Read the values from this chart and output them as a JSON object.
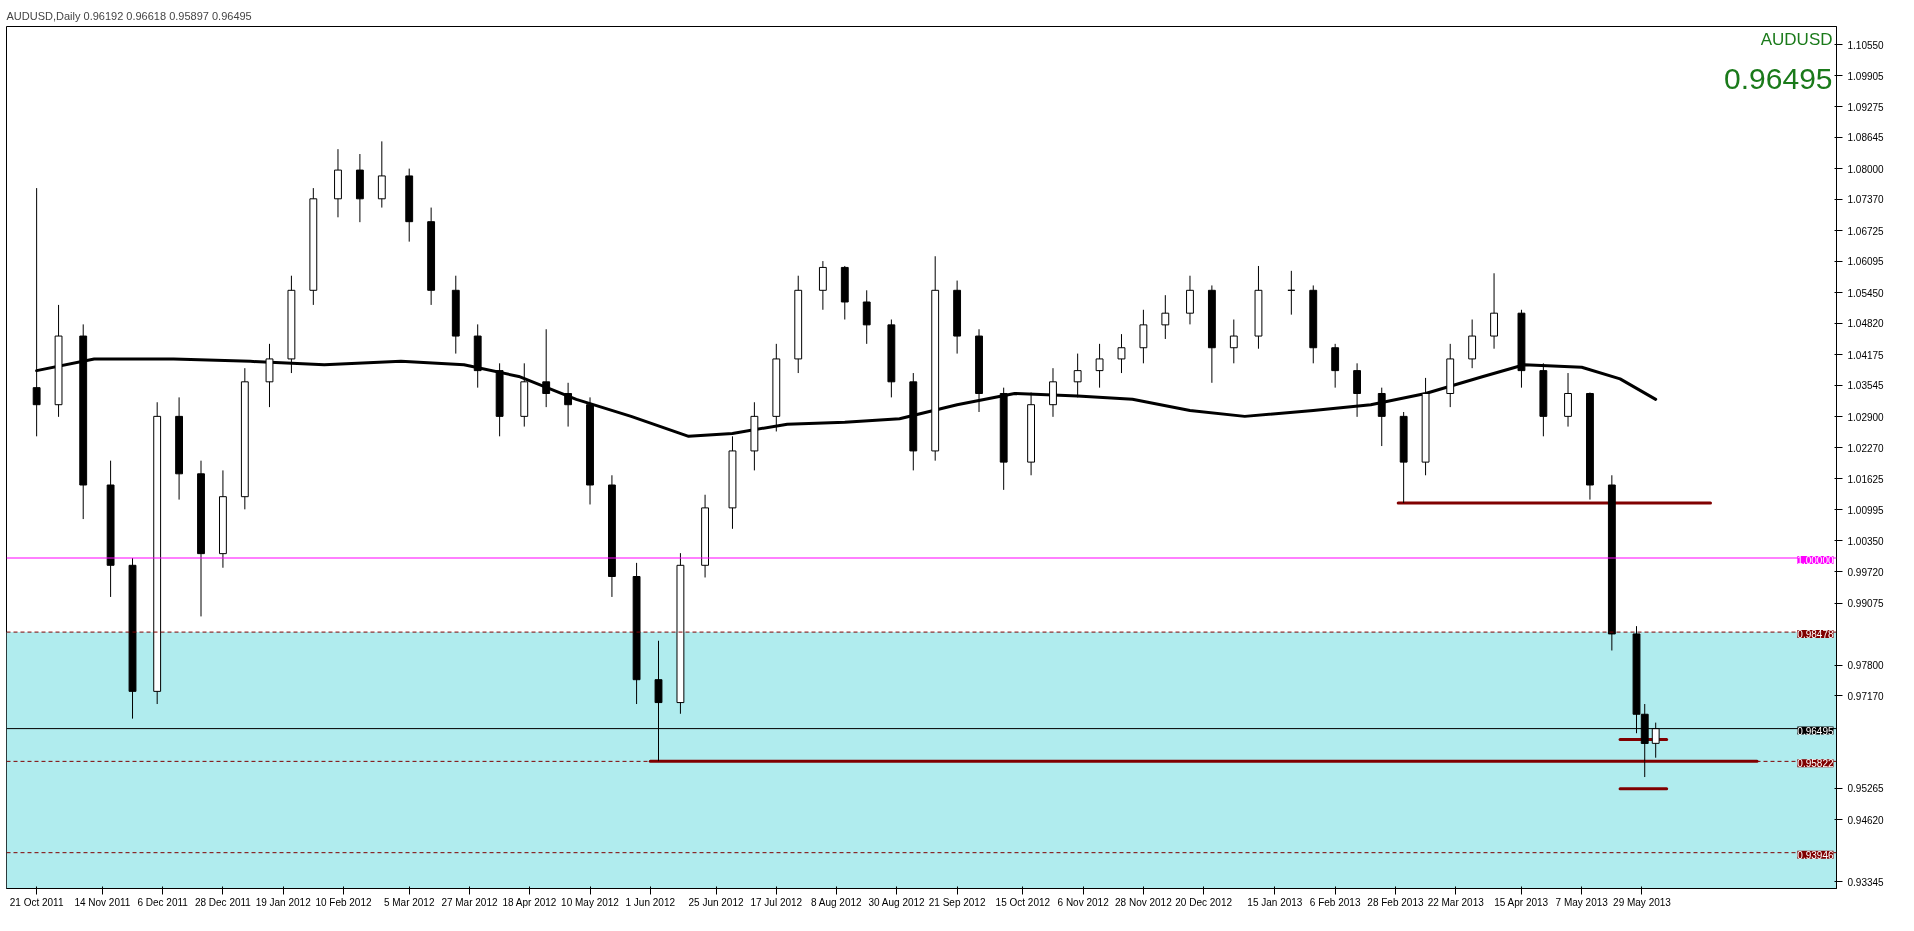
{
  "chart_data": {
    "type": "candlestick",
    "title": "AUDUSD,Daily  0.96192 0.96618 0.95897 0.96495",
    "color": "#000000",
    "x": [
      "2011-10-21",
      "2011-10-29",
      "2011-11-07",
      "2011-11-17",
      "2011-11-25",
      "2011-12-04",
      "2011-12-12",
      "2011-12-20",
      "2011-12-28",
      "2012-01-05",
      "2012-01-14",
      "2012-01-22",
      "2012-01-30",
      "2012-02-08",
      "2012-02-16",
      "2012-02-24",
      "2012-03-05",
      "2012-03-13",
      "2012-03-22",
      "2012-03-30",
      "2012-04-07",
      "2012-04-16",
      "2012-04-24",
      "2012-05-02",
      "2012-05-10",
      "2012-05-18",
      "2012-05-27",
      "2012-06-04",
      "2012-06-12",
      "2012-06-21",
      "2012-07-01",
      "2012-07-09",
      "2012-07-17",
      "2012-07-25",
      "2012-08-03",
      "2012-08-11",
      "2012-08-19",
      "2012-08-28",
      "2012-09-05",
      "2012-09-13",
      "2012-09-21",
      "2012-09-29",
      "2012-10-08",
      "2012-10-18",
      "2012-10-26",
      "2012-11-04",
      "2012-11-12",
      "2012-11-20",
      "2012-11-28",
      "2012-12-06",
      "2012-12-15",
      "2012-12-23",
      "2012-12-31",
      "2013-01-09",
      "2013-01-21",
      "2013-01-29",
      "2013-02-06",
      "2013-02-14",
      "2013-02-23",
      "2013-03-03",
      "2013-03-11",
      "2013-03-20",
      "2013-03-28",
      "2013-04-05",
      "2013-04-15",
      "2013-04-23",
      "2013-05-02",
      "2013-05-10",
      "2013-05-18",
      "2013-05-27",
      "2013-05-30",
      "2013-06-03"
    ],
    "ohlc": [
      [
        1.035,
        1.076,
        1.025,
        1.0315
      ],
      [
        1.0315,
        1.052,
        1.029,
        1.0456
      ],
      [
        1.0456,
        1.048,
        1.008,
        1.015
      ],
      [
        1.015,
        1.02,
        0.992,
        0.9985
      ],
      [
        0.9985,
        1.0,
        0.967,
        0.9726
      ],
      [
        0.9726,
        1.032,
        0.97,
        1.0291
      ],
      [
        1.0291,
        1.033,
        1.012,
        1.0173
      ],
      [
        1.0173,
        1.02,
        0.988,
        1.0009
      ],
      [
        1.0009,
        1.018,
        0.998,
        1.0126
      ],
      [
        1.0126,
        1.039,
        1.01,
        1.0362
      ],
      [
        1.0362,
        1.044,
        1.031,
        1.0409
      ],
      [
        1.0409,
        1.058,
        1.038,
        1.055
      ],
      [
        1.055,
        1.076,
        1.052,
        1.0738
      ],
      [
        1.0738,
        1.084,
        1.07,
        1.0797
      ],
      [
        1.0797,
        1.083,
        1.069,
        1.0738
      ],
      [
        1.0738,
        1.0856,
        1.072,
        1.0785
      ],
      [
        1.0785,
        1.08,
        1.065,
        1.0691
      ],
      [
        1.0691,
        1.072,
        1.052,
        1.055
      ],
      [
        1.055,
        1.058,
        1.042,
        1.0456
      ],
      [
        1.0456,
        1.048,
        1.035,
        1.0385
      ],
      [
        1.0385,
        1.04,
        1.025,
        1.0291
      ],
      [
        1.0291,
        1.04,
        1.027,
        1.0362
      ],
      [
        1.0362,
        1.047,
        1.031,
        1.0338
      ],
      [
        1.0338,
        1.036,
        1.027,
        1.0315
      ],
      [
        1.0315,
        1.033,
        1.011,
        1.015
      ],
      [
        1.015,
        1.017,
        0.992,
        0.9962
      ],
      [
        0.9962,
        0.999,
        0.97,
        0.975
      ],
      [
        0.975,
        0.983,
        0.9582,
        0.9703
      ],
      [
        0.9703,
        1.001,
        0.968,
        0.9985
      ],
      [
        0.9985,
        1.013,
        0.996,
        1.0103
      ],
      [
        1.0103,
        1.025,
        1.006,
        1.022
      ],
      [
        1.022,
        1.032,
        1.018,
        1.0291
      ],
      [
        1.0291,
        1.044,
        1.026,
        1.0409
      ],
      [
        1.0409,
        1.058,
        1.038,
        1.055
      ],
      [
        1.055,
        1.061,
        1.051,
        1.0597
      ],
      [
        1.0597,
        1.06,
        1.049,
        1.0526
      ],
      [
        1.0526,
        1.055,
        1.044,
        1.0479
      ],
      [
        1.0479,
        1.049,
        1.033,
        1.0362
      ],
      [
        1.0362,
        1.038,
        1.018,
        1.022
      ],
      [
        1.022,
        1.062,
        1.02,
        1.055
      ],
      [
        1.055,
        1.057,
        1.042,
        1.0456
      ],
      [
        1.0456,
        1.047,
        1.03,
        1.0338
      ],
      [
        1.0338,
        1.035,
        1.014,
        1.0197
      ],
      [
        1.0197,
        1.034,
        1.017,
        1.0315
      ],
      [
        1.0315,
        1.039,
        1.029,
        1.0362
      ],
      [
        1.0362,
        1.042,
        1.033,
        1.0385
      ],
      [
        1.0385,
        1.044,
        1.035,
        1.0409
      ],
      [
        1.0409,
        1.046,
        1.038,
        1.0432
      ],
      [
        1.0432,
        1.051,
        1.04,
        1.0479
      ],
      [
        1.0479,
        1.054,
        1.045,
        1.0503
      ],
      [
        1.0503,
        1.058,
        1.048,
        1.055
      ],
      [
        1.055,
        1.056,
        1.036,
        1.0432
      ],
      [
        1.0432,
        1.049,
        1.04,
        1.0456
      ],
      [
        1.0456,
        1.06,
        1.043,
        1.055
      ],
      [
        1.055,
        1.059,
        1.05,
        1.055
      ],
      [
        1.055,
        1.056,
        1.04,
        1.0432
      ],
      [
        1.0432,
        1.044,
        1.035,
        1.0385
      ],
      [
        1.0385,
        1.04,
        1.029,
        1.0338
      ],
      [
        1.0338,
        1.035,
        1.023,
        1.0291
      ],
      [
        1.0291,
        1.03,
        1.0113,
        1.0197
      ],
      [
        1.0197,
        1.037,
        1.017,
        1.0338
      ],
      [
        1.0338,
        1.044,
        1.031,
        1.0409
      ],
      [
        1.0409,
        1.049,
        1.039,
        1.0456
      ],
      [
        1.0456,
        1.0585,
        1.043,
        1.0503
      ],
      [
        1.0503,
        1.051,
        1.035,
        1.0385
      ],
      [
        1.0385,
        1.04,
        1.025,
        1.0291
      ],
      [
        1.0291,
        1.038,
        1.027,
        1.0338
      ],
      [
        1.0338,
        1.034,
        1.012,
        1.015
      ],
      [
        1.015,
        1.017,
        0.981,
        0.9844
      ],
      [
        0.9844,
        0.986,
        0.964,
        0.9679
      ],
      [
        0.9679,
        0.97,
        0.955,
        0.9619
      ],
      [
        0.96192,
        0.96618,
        0.95897,
        0.96495
      ]
    ],
    "series": [
      {
        "type": "line",
        "color": "#000000",
        "x": [
          "2011-10-21",
          "2011-11-11",
          "2011-12-10",
          "2012-01-07",
          "2012-02-03",
          "2012-03-02",
          "2012-03-25",
          "2012-04-14",
          "2012-05-05",
          "2012-05-25",
          "2012-06-15",
          "2012-07-01",
          "2012-07-21",
          "2012-08-11",
          "2012-08-31",
          "2012-09-21",
          "2012-10-12",
          "2012-11-04",
          "2012-11-24",
          "2012-12-15",
          "2013-01-04",
          "2013-01-29",
          "2013-02-19",
          "2013-03-11",
          "2013-04-01",
          "2013-04-16",
          "2013-05-07",
          "2013-05-21",
          "2013-06-03"
        ],
        "values": [
          1.0385,
          1.0409,
          1.0409,
          1.0404,
          1.0397,
          1.0404,
          1.0397,
          1.0373,
          1.0326,
          1.0291,
          1.025,
          1.0256,
          1.0275,
          1.0279,
          1.0286,
          1.0315,
          1.0338,
          1.0333,
          1.0326,
          1.0303,
          1.0291,
          1.0303,
          1.0315,
          1.0338,
          1.0373,
          1.0397,
          1.0392,
          1.0368,
          1.0326
        ]
      },
      {
        "type": "line",
        "color": "#800000",
        "x": [
          "2012-06-01",
          "2013-07-10"
        ],
        "values": [
          0.95822,
          0.95822
        ]
      },
      {
        "type": "line",
        "color": "#800000",
        "x": [
          "2013-03-01",
          "2013-06-23"
        ],
        "values": [
          1.0113,
          1.0113
        ]
      },
      {
        "type": "line",
        "color": "#800000",
        "x": [
          "2013-05-21",
          "2013-06-07"
        ],
        "values": [
          0.9627,
          0.9627
        ]
      },
      {
        "type": "line",
        "color": "#800000",
        "x": [
          "2013-05-21",
          "2013-06-07"
        ],
        "values": [
          0.9526,
          0.9526
        ]
      }
    ],
    "ref_lines": [
      {
        "axis": "y",
        "value": 1.0,
        "label": "1.00000",
        "color": "#ff00ff",
        "line_style": "solid"
      },
      {
        "axis": "y",
        "value": 0.98478,
        "label": "0.98478",
        "color": "#800000",
        "line_style": "dashed"
      },
      {
        "axis": "y",
        "value": 0.96495,
        "label": "0.96495",
        "color": "#000000",
        "line_style": "solid"
      },
      {
        "axis": "y",
        "value": 0.95822,
        "label": "0.95822",
        "color": "#800000",
        "line_style": "dashed"
      },
      {
        "axis": "y",
        "value": 0.93946,
        "label": "0.93946",
        "color": "#800000",
        "line_style": "dashed"
      }
    ],
    "bands": [
      {
        "axis": "y",
        "from": 0.9321,
        "to": 0.98478,
        "color": "#b0ecee"
      }
    ],
    "annotations": [
      "AUDUSD",
      "0.96495"
    ],
    "xlim": [
      "2011-10-10",
      "2013-08-08"
    ],
    "ylim": [
      0.9321,
      1.1092
    ],
    "xticks": [
      {
        "value": "2011-10-21",
        "label": "21 Oct 2011"
      },
      {
        "value": "2011-11-14",
        "label": "14 Nov 2011"
      },
      {
        "value": "2011-12-06",
        "label": "6 Dec 2011"
      },
      {
        "value": "2011-12-28",
        "label": "28 Dec 2011"
      },
      {
        "value": "2012-01-19",
        "label": "19 Jan 2012"
      },
      {
        "value": "2012-02-10",
        "label": "10 Feb 2012"
      },
      {
        "value": "2012-03-05",
        "label": "5 Mar 2012"
      },
      {
        "value": "2012-03-27",
        "label": "27 Mar 2012"
      },
      {
        "value": "2012-04-18",
        "label": "18 Apr 2012"
      },
      {
        "value": "2012-05-10",
        "label": "10 May 2012"
      },
      {
        "value": "2012-06-01",
        "label": "1 Jun 2012"
      },
      {
        "value": "2012-06-25",
        "label": "25 Jun 2012"
      },
      {
        "value": "2012-07-17",
        "label": "17 Jul 2012"
      },
      {
        "value": "2012-08-08",
        "label": "8 Aug 2012"
      },
      {
        "value": "2012-08-30",
        "label": "30 Aug 2012"
      },
      {
        "value": "2012-09-21",
        "label": "21 Sep 2012"
      },
      {
        "value": "2012-10-15",
        "label": "15 Oct 2012"
      },
      {
        "value": "2012-11-06",
        "label": "6 Nov 2012"
      },
      {
        "value": "2012-11-28",
        "label": "28 Nov 2012"
      },
      {
        "value": "2012-12-20",
        "label": "20 Dec 2012"
      },
      {
        "value": "2013-01-15",
        "label": "15 Jan 2013"
      },
      {
        "value": "2013-02-06",
        "label": "6 Feb 2013"
      },
      {
        "value": "2013-02-28",
        "label": "28 Feb 2013"
      },
      {
        "value": "2013-03-22",
        "label": "22 Mar 2013"
      },
      {
        "value": "2013-04-15",
        "label": "15 Apr 2013"
      },
      {
        "value": "2013-05-07",
        "label": "7 May 2013"
      },
      {
        "value": "2013-05-29",
        "label": "29 May 2013"
      }
    ],
    "yticks": [
      {
        "value": 1.1055,
        "label": "1.10550"
      },
      {
        "value": 1.09905,
        "label": "1.09905"
      },
      {
        "value": 1.09275,
        "label": "1.09275"
      },
      {
        "value": 1.08645,
        "label": "1.08645"
      },
      {
        "value": 1.08,
        "label": "1.08000"
      },
      {
        "value": 1.0737,
        "label": "1.07370"
      },
      {
        "value": 1.06725,
        "label": "1.06725"
      },
      {
        "value": 1.06095,
        "label": "1.06095"
      },
      {
        "value": 1.0545,
        "label": "1.05450"
      },
      {
        "value": 1.0482,
        "label": "1.04820"
      },
      {
        "value": 1.04175,
        "label": "1.04175"
      },
      {
        "value": 1.03545,
        "label": "1.03545"
      },
      {
        "value": 1.029,
        "label": "1.02900"
      },
      {
        "value": 1.0227,
        "label": "1.02270"
      },
      {
        "value": 1.01625,
        "label": "1.01625"
      },
      {
        "value": 1.00995,
        "label": "1.00995"
      },
      {
        "value": 1.0035,
        "label": "1.00350"
      },
      {
        "value": 0.9972,
        "label": "0.99720"
      },
      {
        "value": 0.99075,
        "label": "0.99075"
      },
      {
        "value": 0.978,
        "label": "0.97800"
      },
      {
        "value": 0.9717,
        "label": "0.97170"
      },
      {
        "value": 0.95265,
        "label": "0.95265"
      },
      {
        "value": 0.9462,
        "label": "0.94620"
      },
      {
        "value": 0.93345,
        "label": "0.93345"
      }
    ]
  }
}
